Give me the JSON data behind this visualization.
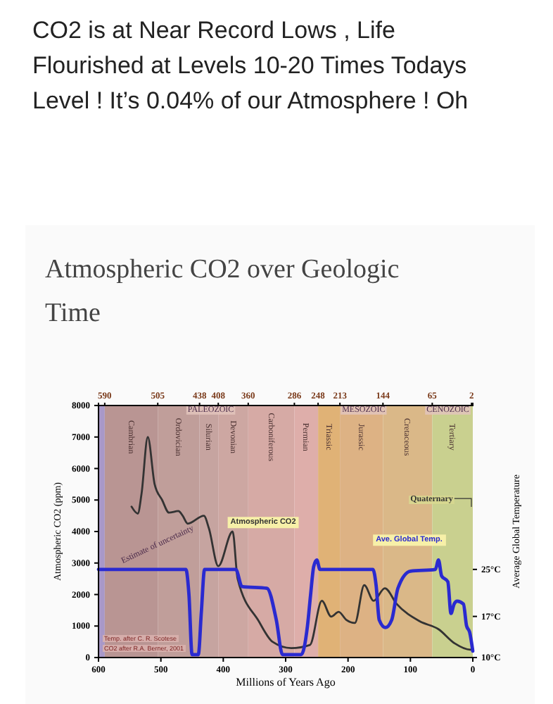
{
  "chart_data": {
    "type": "line",
    "title": "CO2 is at Near Record Lows , Life Flourished at Levels 10-20 Times Todays Level ! It’s 0.04% of our Atmosphere ! Oh",
    "subtitle": "Atmospheric CO2 over Geologic Time",
    "xlabel": "Millions of Years Ago",
    "ylabel": "Atmospheric CO2 (ppm)",
    "y2label": "Average Global Temperature",
    "xlim": [
      600,
      0
    ],
    "xticks": [
      600,
      500,
      400,
      300,
      200,
      100,
      0
    ],
    "x2lim": [
      600,
      0
    ],
    "x2ticks": [
      590,
      505,
      438,
      408,
      360,
      286,
      248,
      213,
      144,
      65,
      2
    ],
    "ylim": [
      0,
      8000
    ],
    "yticks": [
      0,
      1000,
      2000,
      3000,
      4000,
      5000,
      6000,
      7000,
      8000
    ],
    "y2lim": [
      10,
      52.9
    ],
    "y2ticks": [
      {
        "value": 10,
        "label": "10°C"
      },
      {
        "value": 17,
        "label": "17°C"
      },
      {
        "value": 25,
        "label": "25°C"
      }
    ],
    "grid": false,
    "line_style": "solid",
    "marker": "none",
    "series": [
      {
        "name": "Atmospheric CO2",
        "color": "#333333",
        "x": [
          547,
          537,
          531,
          521,
          510,
          498,
          487,
          472,
          465,
          457,
          431,
          423,
          408,
          385,
          377,
          343,
          321,
          291,
          261,
          242,
          227,
          215,
          203,
          189,
          174,
          159,
          141,
          122,
          85,
          55,
          29,
          4,
          0
        ],
        "values": [
          4790,
          4570,
          5200,
          7000,
          5500,
          5000,
          4600,
          4650,
          4500,
          4250,
          4500,
          4100,
          2900,
          4000,
          2500,
          1150,
          500,
          300,
          400,
          1800,
          1300,
          1450,
          1200,
          1100,
          2300,
          1800,
          2200,
          1700,
          1150,
          900,
          450,
          250,
          280
        ]
      },
      {
        "name": "Ave. Global Temp.",
        "color": "#2a2ad0",
        "axis": "y2",
        "x": [
          600,
          460,
          455,
          450,
          440,
          435,
          430,
          380,
          370,
          330,
          315,
          305,
          275,
          265,
          260,
          255,
          250,
          245,
          160,
          155,
          150,
          140,
          130,
          120,
          100,
          60,
          55,
          50,
          40,
          35,
          30,
          25,
          15,
          10,
          5,
          0
        ],
        "values": [
          25,
          25,
          20.7,
          10.5,
          10.5,
          18,
          25,
          25,
          22.1,
          21.8,
          16.4,
          10.5,
          10.5,
          15.4,
          20.7,
          25.5,
          26.6,
          25,
          25,
          22.3,
          16.4,
          15.1,
          16.4,
          21.8,
          24.7,
          25,
          26.6,
          23.9,
          22.9,
          17.5,
          19.1,
          19.6,
          19.1,
          15.4,
          14.3,
          11.1
        ]
      }
    ],
    "bands": [
      {
        "axis": "x",
        "from": 600,
        "to": 590,
        "color": "#a898c8"
      },
      {
        "axis": "x",
        "from": 590,
        "to": 505,
        "label": "Cambrian",
        "color": "#b99593"
      },
      {
        "axis": "x",
        "from": 505,
        "to": 438,
        "label": "Ordovician",
        "color": "#c09e9a"
      },
      {
        "axis": "x",
        "from": 438,
        "to": 408,
        "label": "Silurian",
        "color": "#c6a4a0"
      },
      {
        "axis": "x",
        "from": 408,
        "to": 360,
        "label": "Devonian",
        "color": "#cda7a2"
      },
      {
        "axis": "x",
        "from": 360,
        "to": 286,
        "label": "Carboniferous",
        "color": "#d6aaa5"
      },
      {
        "axis": "x",
        "from": 286,
        "to": 248,
        "label": "Permian",
        "color": "#deaeaa"
      },
      {
        "axis": "x",
        "from": 248,
        "to": 213,
        "label": "Triassic",
        "color": "#e0b276"
      },
      {
        "axis": "x",
        "from": 213,
        "to": 144,
        "label": "Jurassic",
        "color": "#ddb284"
      },
      {
        "axis": "x",
        "from": 144,
        "to": 65,
        "label": "Cretaceous",
        "color": "#dab888"
      },
      {
        "axis": "x",
        "from": 65,
        "to": 0,
        "label": "Tertiary",
        "color": "#c9d08f"
      }
    ],
    "annotations": [
      {
        "text": "PALEOZOIC",
        "x": 420,
        "y": 7800
      },
      {
        "text": "MESOZOIC",
        "x": 175,
        "y": 7800
      },
      {
        "text": "CENOZOIC",
        "x": 40,
        "y": 7800
      },
      "Estimate of uncertainty",
      "Quaternary",
      "Temp. after C. R. Scotese",
      "CO2 after R.A. Berner, 2001"
    ]
  }
}
